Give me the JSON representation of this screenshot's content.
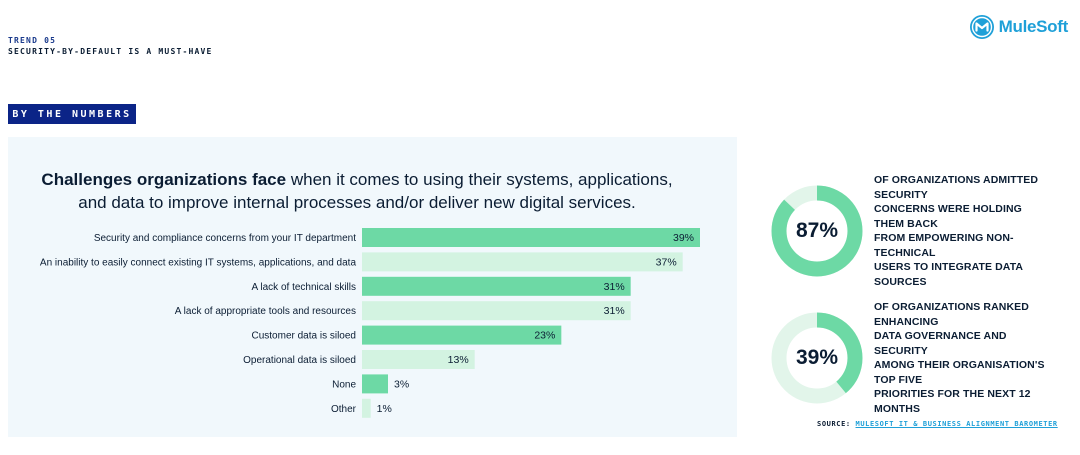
{
  "header": {
    "trend": "TREND 05",
    "subtitle": "SECURITY-BY-DEFAULT IS A MUST-HAVE",
    "logo_text": "MuleSoft",
    "logo_icon": "mulesoft-logo-icon"
  },
  "section_tag": "BY THE NUMBERS",
  "colors": {
    "bar_dark": "#6dd9a5",
    "bar_light": "#d3f3e1",
    "donut_fill": "#6dd9a5",
    "donut_track": "#e2f5ea",
    "brand_blue": "#1fa0d8",
    "tag_navy": "#0b2487"
  },
  "chart_data": {
    "type": "bar",
    "orientation": "horizontal",
    "title_bold": "Challenges organizations face",
    "title_rest_line1": " when it comes to using their systems, applications,",
    "title_line2": "and data to improve internal processes and/or deliver new digital services.",
    "categories": [
      "Security and compliance concerns from your IT department",
      "An inability to easily connect existing IT systems, applications, and data",
      "A lack of technical skills",
      "A lack of appropriate tools and resources",
      "Customer data is siloed",
      "Operational data is siloed",
      "None",
      "Other"
    ],
    "values": [
      39,
      37,
      31,
      31,
      23,
      13,
      3,
      1
    ],
    "value_labels": [
      "39%",
      "37%",
      "31%",
      "31%",
      "23%",
      "13%",
      "3%",
      "1%"
    ],
    "xlim": [
      0,
      39
    ],
    "grid": false
  },
  "stats": [
    {
      "value": 87,
      "label": "87%",
      "lines": [
        "OF ORGANIZATIONS ADMITTED SECURITY",
        "CONCERNS WERE HOLDING THEM BACK",
        "FROM EMPOWERING NON-TECHNICAL",
        "USERS TO INTEGRATE DATA SOURCES"
      ]
    },
    {
      "value": 39,
      "label": "39%",
      "lines": [
        "OF ORGANIZATIONS RANKED ENHANCING",
        "DATA GOVERNANCE AND SECURITY",
        "AMONG THEIR ORGANISATION'S TOP FIVE",
        "PRIORITIES FOR THE NEXT 12 MONTHS"
      ]
    }
  ],
  "source": {
    "prefix": "SOURCE: ",
    "link": "MULESOFT IT & BUSINESS ALIGNMENT BAROMETER"
  }
}
